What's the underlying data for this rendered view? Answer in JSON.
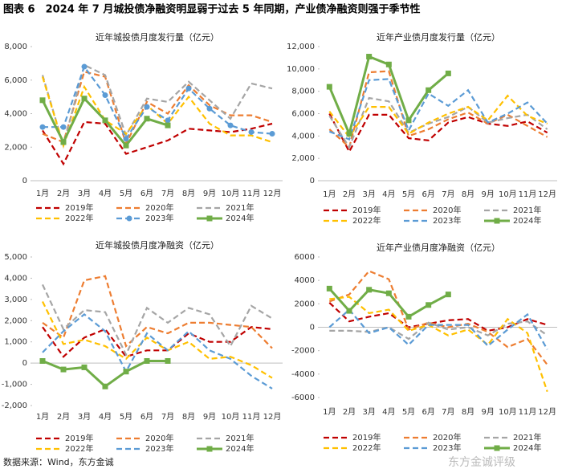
{
  "title": "图表 6　2024 年 7 月城投债净融资明显弱于过去 5 年同期，产业债净融资则强于季节性",
  "source": "数据来源：Wind，东方金诚",
  "watermark": "东方金诚评级",
  "chart_data": [
    {
      "type": "line",
      "title": "近年城投债月度发行量（亿元）",
      "categories": [
        "1月",
        "2月",
        "3月",
        "4月",
        "5月",
        "6月",
        "7月",
        "8月",
        "9月",
        "10月",
        "11月",
        "12月"
      ],
      "ylim": [
        0,
        8000
      ],
      "yticks": [
        0,
        {
          "value": 2000,
          "label": "2,000"
        },
        {
          "value": 4000,
          "label": "4,000"
        },
        {
          "value": 6000,
          "label": "6,000"
        },
        {
          "value": 8000,
          "label": "8,000"
        }
      ],
      "series": [
        {
          "name": "2019年",
          "color": "#c00000",
          "dashed": true,
          "values": [
            3000,
            1000,
            3500,
            3400,
            1600,
            2000,
            2400,
            3100,
            3000,
            2900,
            3100,
            3400
          ]
        },
        {
          "name": "2020年",
          "color": "#ed7d31",
          "dashed": true,
          "values": [
            2800,
            2300,
            6500,
            6200,
            2200,
            4700,
            4000,
            5700,
            4500,
            3900,
            3900,
            3500
          ]
        },
        {
          "name": "2021年",
          "color": "#a5a5a5",
          "dashed": true,
          "values": [
            6300,
            2100,
            6900,
            6300,
            2700,
            4900,
            4700,
            5900,
            4800,
            3700,
            5800,
            5500
          ]
        },
        {
          "name": "2022年",
          "color": "#ffc000",
          "dashed": true,
          "values": [
            6200,
            2100,
            5600,
            3600,
            2800,
            4500,
            3400,
            5000,
            3400,
            2700,
            2700,
            2300
          ]
        },
        {
          "name": "2023年",
          "color": "#5b9bd5",
          "dashed": true,
          "marker": "circle",
          "values": [
            3200,
            3200,
            6800,
            5100,
            2500,
            4400,
            3600,
            5500,
            4300,
            3300,
            2900,
            2800
          ]
        },
        {
          "name": "2024年",
          "color": "#70ad47",
          "dashed": false,
          "marker": "square",
          "values": [
            4800,
            2300,
            4900,
            3600,
            2100,
            3700,
            3300,
            null,
            null,
            null,
            null,
            null
          ]
        }
      ]
    },
    {
      "type": "line",
      "title": "近年产业债月度发行量（亿元）",
      "categories": [
        "1月",
        "2月",
        "3月",
        "4月",
        "5月",
        "6月",
        "7月",
        "8月",
        "9月",
        "10月",
        "11月",
        "12月"
      ],
      "ylim": [
        0,
        12000
      ],
      "yticks": [
        0,
        {
          "value": 2000,
          "label": "2,000"
        },
        {
          "value": 4000,
          "label": "4,000"
        },
        {
          "value": 6000,
          "label": "6,000"
        },
        {
          "value": 8000,
          "label": "8,000"
        },
        {
          "value": 10000,
          "label": "10,000"
        },
        {
          "value": 12000,
          "label": "12,000"
        }
      ],
      "series": [
        {
          "name": "2019年",
          "color": "#c00000",
          "dashed": true,
          "values": [
            6000,
            2600,
            5900,
            5900,
            3800,
            3600,
            5200,
            5700,
            5100,
            4900,
            5300,
            4300
          ]
        },
        {
          "name": "2020年",
          "color": "#ed7d31",
          "dashed": true,
          "values": [
            4600,
            3000,
            9700,
            9800,
            4000,
            4600,
            5500,
            6100,
            5100,
            5900,
            4900,
            3900
          ]
        },
        {
          "name": "2021年",
          "color": "#a5a5a5",
          "dashed": true,
          "values": [
            5800,
            3000,
            7400,
            7100,
            4300,
            5100,
            5700,
            6600,
            5200,
            5600,
            5900,
            4600
          ]
        },
        {
          "name": "2022年",
          "color": "#ffc000",
          "dashed": true,
          "values": [
            6200,
            3900,
            6600,
            6600,
            4200,
            5200,
            6000,
            6600,
            5400,
            7600,
            5800,
            5100
          ]
        },
        {
          "name": "2023年",
          "color": "#5b9bd5",
          "dashed": true,
          "values": [
            4400,
            3700,
            9000,
            9100,
            4500,
            7800,
            6700,
            8100,
            5200,
            6000,
            7000,
            5100
          ]
        },
        {
          "name": "2024年",
          "color": "#70ad47",
          "dashed": false,
          "marker": "square",
          "values": [
            8400,
            4200,
            11100,
            10400,
            5400,
            8100,
            9600,
            null,
            null,
            null,
            null,
            null
          ]
        }
      ]
    },
    {
      "type": "line",
      "title": "近年城投债月度净融资（亿元）",
      "categories": [
        "1月",
        "2月",
        "3月",
        "4月",
        "5月",
        "6月",
        "7月",
        "8月",
        "9月",
        "10月",
        "11月",
        "12月"
      ],
      "ylim": [
        -2000,
        5000
      ],
      "yticks": [
        {
          "value": -2000,
          "label": "-2,000"
        },
        {
          "value": -1000,
          "label": "-1,000"
        },
        0,
        {
          "value": 1000,
          "label": "1,000"
        },
        {
          "value": 2000,
          "label": "2,000"
        },
        {
          "value": 3000,
          "label": "3,000"
        },
        {
          "value": 4000,
          "label": "4,000"
        },
        {
          "value": 5000,
          "label": "5,000"
        }
      ],
      "series": [
        {
          "name": "2019年",
          "color": "#c00000",
          "dashed": true,
          "values": [
            1700,
            300,
            1200,
            1600,
            300,
            600,
            600,
            1400,
            1000,
            1000,
            1700,
            1600
          ]
        },
        {
          "name": "2020年",
          "color": "#ed7d31",
          "dashed": true,
          "values": [
            1900,
            1200,
            3900,
            4100,
            800,
            1700,
            1400,
            1900,
            1900,
            1800,
            1700,
            700
          ]
        },
        {
          "name": "2021年",
          "color": "#a5a5a5",
          "dashed": true,
          "values": [
            3700,
            1600,
            2500,
            2400,
            400,
            2600,
            1900,
            2600,
            2300,
            800,
            2700,
            2100
          ]
        },
        {
          "name": "2022年",
          "color": "#ffc000",
          "dashed": true,
          "values": [
            2900,
            900,
            1100,
            800,
            200,
            1200,
            600,
            1000,
            200,
            300,
            -100,
            -700
          ]
        },
        {
          "name": "2023年",
          "color": "#5b9bd5",
          "dashed": true,
          "values": [
            500,
            1500,
            2300,
            1500,
            -400,
            1400,
            600,
            1500,
            600,
            200,
            -600,
            -1200
          ]
        },
        {
          "name": "2024年",
          "color": "#70ad47",
          "dashed": false,
          "marker": "square",
          "values": [
            100,
            -300,
            -200,
            -1100,
            -400,
            100,
            100,
            null,
            null,
            null,
            null,
            null
          ]
        }
      ]
    },
    {
      "type": "line",
      "title": "近年产业债月度净融资（亿元）",
      "categories": [
        "1月",
        "2月",
        "3月",
        "4月",
        "5月",
        "6月",
        "7月",
        "8月",
        "9月",
        "10月",
        "11月",
        "12月"
      ],
      "ylim": [
        -6000,
        6000
      ],
      "yticks": [
        -6000,
        -4000,
        -2000,
        0,
        2000,
        4000,
        6000
      ],
      "series": [
        {
          "name": "2019年",
          "color": "#c00000",
          "dashed": true,
          "values": [
            2100,
            500,
            900,
            1200,
            0,
            300,
            600,
            700,
            -300,
            0,
            700,
            200
          ]
        },
        {
          "name": "2020年",
          "color": "#ed7d31",
          "dashed": true,
          "values": [
            2200,
            2800,
            4800,
            4100,
            -200,
            400,
            0,
            300,
            -400,
            -1700,
            -1000,
            -3200
          ]
        },
        {
          "name": "2021年",
          "color": "#a5a5a5",
          "dashed": true,
          "values": [
            -300,
            -300,
            -400,
            0,
            -1000,
            400,
            -200,
            0,
            -700,
            300,
            500,
            -700
          ]
        },
        {
          "name": "2022年",
          "color": "#ffc000",
          "dashed": true,
          "values": [
            2400,
            2600,
            1200,
            1500,
            -300,
            200,
            -700,
            -200,
            -1500,
            700,
            -500,
            -5500
          ]
        },
        {
          "name": "2023年",
          "color": "#5b9bd5",
          "dashed": true,
          "values": [
            0,
            1500,
            -500,
            0,
            -1500,
            200,
            200,
            200,
            -1600,
            -200,
            1100,
            -1900
          ]
        },
        {
          "name": "2024年",
          "color": "#70ad47",
          "dashed": false,
          "marker": "square",
          "values": [
            3300,
            1400,
            3200,
            2900,
            900,
            1900,
            2800,
            null,
            null,
            null,
            null,
            null
          ]
        }
      ]
    }
  ]
}
